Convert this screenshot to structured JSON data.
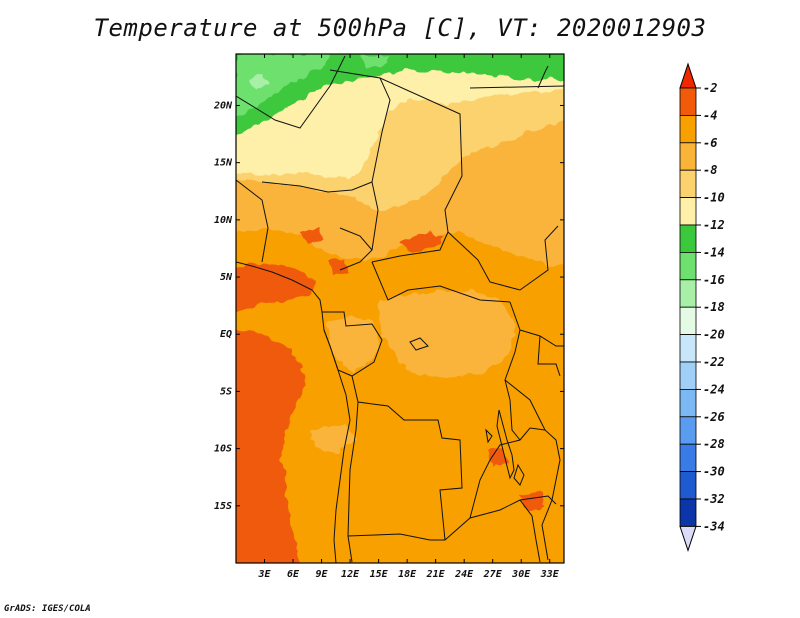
{
  "title": "Temperature at 500hPa [C], VT: 2020012903",
  "credit": "GrADS: IGES/COLA",
  "map": {
    "lat_labels": [
      {
        "label": "20N",
        "lat": 20
      },
      {
        "label": "15N",
        "lat": 15
      },
      {
        "label": "10N",
        "lat": 10
      },
      {
        "label": "5N",
        "lat": 5
      },
      {
        "label": "EQ",
        "lat": 0
      },
      {
        "label": "5S",
        "lat": -5
      },
      {
        "label": "10S",
        "lat": -10
      },
      {
        "label": "15S",
        "lat": -15
      }
    ],
    "lon_labels": [
      {
        "label": "3E",
        "lon": 3
      },
      {
        "label": "6E",
        "lon": 6
      },
      {
        "label": "9E",
        "lon": 9
      },
      {
        "label": "12E",
        "lon": 12
      },
      {
        "label": "15E",
        "lon": 15
      },
      {
        "label": "18E",
        "lon": 18
      },
      {
        "label": "21E",
        "lon": 21
      },
      {
        "label": "24E",
        "lon": 24
      },
      {
        "label": "27E",
        "lon": 27
      },
      {
        "label": "30E",
        "lon": 30
      },
      {
        "label": "33E",
        "lon": 33
      }
    ]
  },
  "colorbar": {
    "labels": [
      "-2",
      "-4",
      "-6",
      "-8",
      "-10",
      "-12",
      "-14",
      "-16",
      "-18",
      "-20",
      "-22",
      "-24",
      "-26",
      "-28",
      "-30",
      "-32",
      "-34"
    ],
    "colors": [
      "#f05a08",
      "#f7a000",
      "#fab43a",
      "#fcd26e",
      "#fef0a8",
      "#3cc83c",
      "#6ee06e",
      "#a8f0a8",
      "#e4fae4",
      "#c8e6fa",
      "#a0d0f8",
      "#7cb8f4",
      "#5a9cf0",
      "#3a7ce6",
      "#1e5ad0",
      "#0c36a8",
      "#000078"
    ],
    "top_arrow_color": "#f02800",
    "bottom_arrow_color": "#dcdcf8"
  },
  "chart_data": {
    "type": "heatmap",
    "title": "Temperature at 500hPa [C], VT: 2020012903",
    "variable": "Temperature at 500hPa",
    "units": "C",
    "valid_time": "2020012903",
    "lon_range": [
      0,
      34.5
    ],
    "lat_range": [
      -20,
      24.5
    ],
    "color_levels": [
      -2,
      -4,
      -6,
      -8,
      -10,
      -12,
      -14,
      -16,
      -18,
      -20,
      -22,
      -24,
      -26,
      -28,
      -30,
      -32,
      -34
    ],
    "regions": [
      {
        "area": "northern edge (~21N-24N)",
        "value_range": [
          -14,
          -12
        ]
      },
      {
        "area": "Sahara / Sahel north of 12N",
        "value_range": [
          -10,
          -8
        ]
      },
      {
        "area": "West-Central Africa 5N-12N",
        "value_range": [
          -8,
          -4
        ]
      },
      {
        "area": "Gulf of Guinea / Atlantic coast",
        "value_range": [
          -4,
          -2
        ]
      },
      {
        "area": "Congo basin",
        "value_range": [
          -6,
          -4
        ]
      },
      {
        "area": "Southern Africa 5S-20S",
        "value_range": [
          -6,
          -4
        ]
      },
      {
        "area": "SW Atlantic 5S-20S",
        "value_range": [
          -4,
          -2
        ]
      }
    ]
  }
}
